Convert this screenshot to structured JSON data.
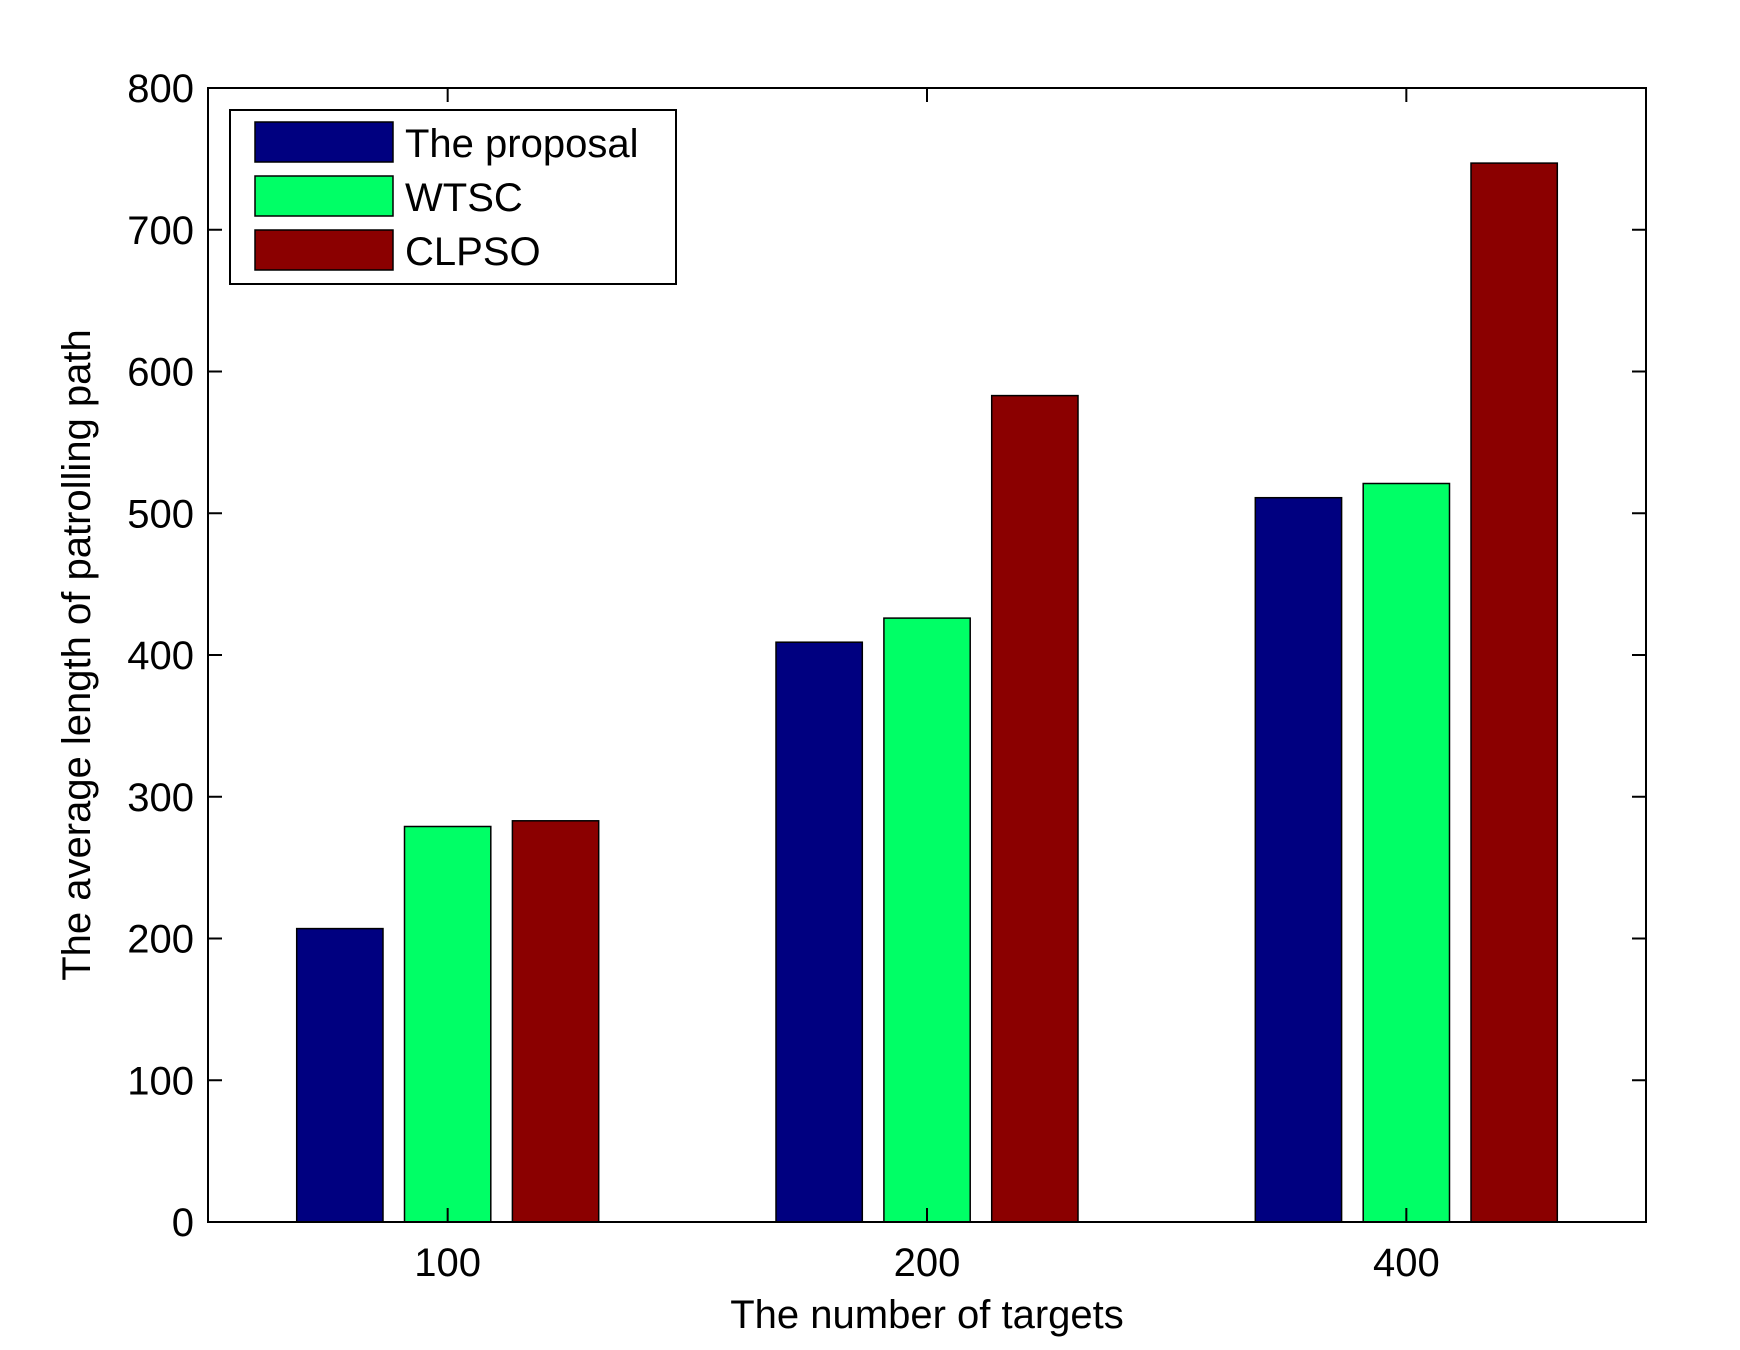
{
  "chart_data": {
    "type": "bar",
    "xlabel": "The number of targets",
    "ylabel": "The average length of patrolling path",
    "categories": [
      "100",
      "200",
      "400"
    ],
    "ylim": [
      0,
      800
    ],
    "yticks": [
      0,
      100,
      200,
      300,
      400,
      500,
      600,
      700,
      800
    ],
    "grid": false,
    "legend_position": "top-left",
    "series": [
      {
        "name": "The proposal",
        "color": "#000080",
        "values": [
          207,
          409,
          511
        ]
      },
      {
        "name": "WTSC",
        "color": "#00ff66",
        "values": [
          279,
          426,
          521
        ]
      },
      {
        "name": "CLPSO",
        "color": "#8b0000",
        "values": [
          283,
          583,
          747
        ]
      }
    ]
  }
}
